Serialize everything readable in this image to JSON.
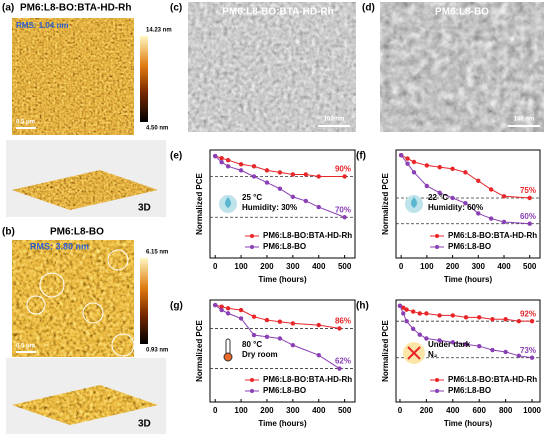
{
  "panels": {
    "a": {
      "label": "(a)",
      "title": "PM6:L8-BO:BTA-HD-Rh",
      "rms": "RMS: 1.04 nm",
      "scale_max": "14.23 nm",
      "scale_min": "4.50 nm",
      "scale_bar": "0.5 μm",
      "view": "3D"
    },
    "b": {
      "label": "(b)",
      "title": "PM6:L8-BO",
      "rms": "RMS: 3.80 nm",
      "scale_max": "6.15 nm",
      "scale_min": "0.93 nm",
      "scale_bar": "0.5 μm",
      "view": "3D"
    },
    "c": {
      "label": "(c)",
      "title": "PM6:L8-BO:BTA-HD-Rh",
      "scale_bar": "100 nm"
    },
    "d": {
      "label": "(d)",
      "title": "PM6:L8-BO",
      "scale_bar": "100 nm"
    }
  },
  "chart_data": [
    {
      "type": "line",
      "label": "(e)",
      "x_label": "Time (hours)",
      "y_label": "Normalized PCE",
      "x": [
        0,
        25,
        50,
        100,
        150,
        200,
        250,
        300,
        350,
        400,
        500
      ],
      "series": [
        {
          "name": "PM6:L8-BO:BTA-HD-Rh",
          "color": "#e8262a",
          "values": [
            1.0,
            0.99,
            0.98,
            0.96,
            0.95,
            0.93,
            0.92,
            0.91,
            0.91,
            0.9,
            0.9
          ]
        },
        {
          "name": "PM6:L8-BO",
          "color": "#8a3fb5",
          "values": [
            1.0,
            0.97,
            0.95,
            0.93,
            0.9,
            0.87,
            0.84,
            0.8,
            0.78,
            0.75,
            0.7
          ]
        }
      ],
      "annotations": [
        {
          "value": 0.9,
          "label": "90%",
          "color": "#e8262a"
        },
        {
          "value": 0.7,
          "label": "70%",
          "color": "#8a3fb5"
        }
      ],
      "conditions": [
        "25 °C",
        "Humidity: 30%"
      ],
      "xlim": [
        -20,
        540
      ],
      "xticks": [
        0,
        100,
        200,
        300,
        400,
        500
      ],
      "ylim": [
        0.5,
        1.03
      ],
      "legend": "lower right"
    },
    {
      "type": "line",
      "label": "(f)",
      "x_label": "Time (hours)",
      "y_label": "Normalized PCE",
      "x": [
        0,
        25,
        50,
        100,
        150,
        200,
        250,
        300,
        350,
        400,
        500
      ],
      "series": [
        {
          "name": "PM6:L8-BO:BTA-HD-Rh",
          "color": "#e8262a",
          "values": [
            1.0,
            0.98,
            0.96,
            0.94,
            0.93,
            0.92,
            0.9,
            0.85,
            0.8,
            0.76,
            0.75
          ]
        },
        {
          "name": "PM6:L8-BO",
          "color": "#8a3fb5",
          "values": [
            1.0,
            0.95,
            0.9,
            0.82,
            0.78,
            0.75,
            0.72,
            0.66,
            0.63,
            0.61,
            0.6
          ]
        }
      ],
      "annotations": [
        {
          "value": 0.75,
          "label": "75%",
          "color": "#e8262a"
        },
        {
          "value": 0.6,
          "label": "60%",
          "color": "#8a3fb5"
        }
      ],
      "conditions": [
        "22 °C",
        "Humidity: 60%"
      ],
      "xlim": [
        -20,
        540
      ],
      "xticks": [
        0,
        100,
        200,
        300,
        400,
        500
      ],
      "ylim": [
        0.4,
        1.03
      ],
      "legend": "lower right"
    },
    {
      "type": "line",
      "label": "(g)",
      "x_label": "Time (hours)",
      "y_label": "Normalized PCE",
      "x": [
        0,
        25,
        50,
        100,
        150,
        200,
        250,
        300,
        400,
        480
      ],
      "series": [
        {
          "name": "PM6:L8-BO:BTA-HD-Rh",
          "color": "#e8262a",
          "values": [
            1.0,
            0.99,
            0.98,
            0.97,
            0.93,
            0.91,
            0.9,
            0.89,
            0.88,
            0.86
          ]
        },
        {
          "name": "PM6:L8-BO",
          "color": "#8a3fb5",
          "values": [
            1.0,
            0.97,
            0.95,
            0.92,
            0.82,
            0.81,
            0.8,
            0.76,
            0.7,
            0.62
          ]
        }
      ],
      "annotations": [
        {
          "value": 0.86,
          "label": "86%",
          "color": "#e8262a"
        },
        {
          "value": 0.62,
          "label": "62%",
          "color": "#8a3fb5"
        }
      ],
      "conditions": [
        "80 °C",
        "Dry room"
      ],
      "xlim": [
        -20,
        540
      ],
      "xticks": [
        0,
        100,
        200,
        300,
        400,
        500
      ],
      "ylim": [
        0.42,
        1.03
      ],
      "legend": "lower right"
    },
    {
      "type": "line",
      "label": "(h)",
      "x_label": "Time (hours)",
      "y_label": "Normalized PCE",
      "x": [
        0,
        25,
        50,
        100,
        150,
        200,
        300,
        400,
        500,
        600,
        700,
        800,
        900,
        1000
      ],
      "series": [
        {
          "name": "PM6:L8-BO:BTA-HD-Rh",
          "color": "#e8262a",
          "values": [
            1.0,
            0.99,
            0.98,
            0.97,
            0.96,
            0.96,
            0.95,
            0.95,
            0.94,
            0.94,
            0.93,
            0.93,
            0.92,
            0.92
          ]
        },
        {
          "name": "PM6:L8-BO",
          "color": "#8a3fb5",
          "values": [
            1.0,
            0.96,
            0.92,
            0.88,
            0.85,
            0.83,
            0.82,
            0.81,
            0.8,
            0.79,
            0.77,
            0.76,
            0.74,
            0.73
          ]
        }
      ],
      "annotations": [
        {
          "value": 0.92,
          "label": "92%",
          "color": "#e8262a"
        },
        {
          "value": 0.73,
          "label": "73%",
          "color": "#8a3fb5"
        }
      ],
      "conditions": [
        "Under dark",
        "N₂"
      ],
      "xlim": [
        -30,
        1060
      ],
      "xticks": [
        0,
        200,
        400,
        600,
        800,
        1000
      ],
      "ylim": [
        0.5,
        1.03
      ],
      "legend": "lower right"
    }
  ]
}
